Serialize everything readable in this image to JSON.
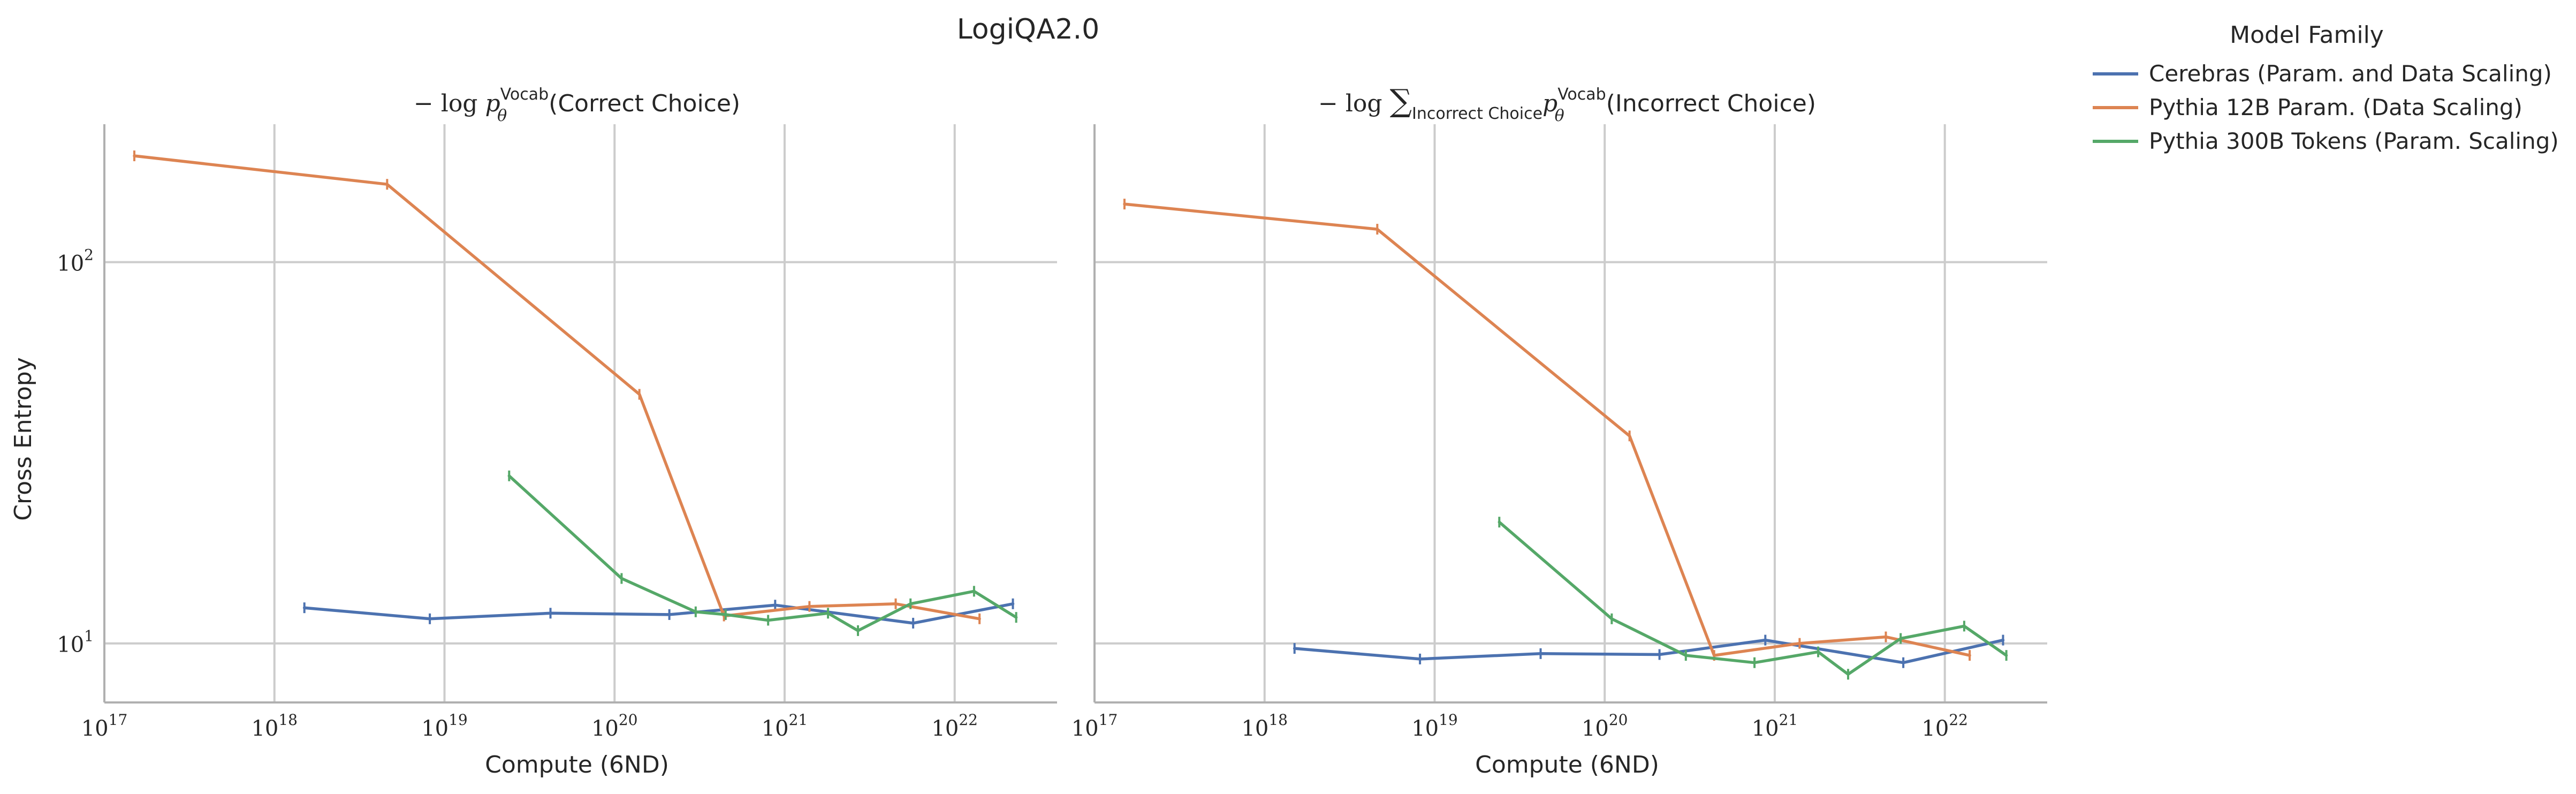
{
  "figure": {
    "suptitle": "LogiQA2.0",
    "ylabel": "Cross Entropy",
    "legend": {
      "title": "Model Family",
      "placement": "outside-right-top"
    }
  },
  "colors": {
    "Cerebras": "#4c72b0",
    "Pythia12B": "#dd8452",
    "Pythia300B": "#55a868",
    "grid": "#cccccc",
    "axes": "#b0b0b0"
  },
  "chart_data": [
    {
      "type": "line",
      "title_parts": {
        "neg_log": "− log ",
        "p": "p",
        "theta": "θ",
        "sup": "Vocab",
        "rest": "(Correct Choice)"
      },
      "xlabel": "Compute (6ND)",
      "ylabel": "Cross Entropy",
      "xscale": "log",
      "yscale": "log",
      "xlim": [
        1e+17,
        4e+22
      ],
      "ylim": [
        7.0,
        230
      ],
      "grid": true,
      "xticks": [
        {
          "value": 1e+17,
          "base": "10",
          "exp": "17"
        },
        {
          "value": 1e+18,
          "base": "10",
          "exp": "18"
        },
        {
          "value": 1e+19,
          "base": "10",
          "exp": "19"
        },
        {
          "value": 1e+20,
          "base": "10",
          "exp": "20"
        },
        {
          "value": 1e+21,
          "base": "10",
          "exp": "21"
        },
        {
          "value": 1e+22,
          "base": "10",
          "exp": "22"
        }
      ],
      "yticks": [
        {
          "value": 10,
          "base": "10",
          "exp": "1"
        },
        {
          "value": 100,
          "base": "10",
          "exp": "2"
        }
      ],
      "series": [
        {
          "name": "Cerebras (Param. and Data Scaling)",
          "color_key": "Cerebras",
          "x": [
            1.5e+18,
            8.2e+18,
            4.2e+19,
            2.1e+20,
            8.8e+20,
            5.7e+21,
            2.2e+22
          ],
          "y": [
            12.4,
            11.6,
            12.0,
            11.9,
            12.6,
            11.3,
            12.7
          ]
        },
        {
          "name": "Pythia 12B Param. (Data Scaling)",
          "color_key": "Pythia12B",
          "x": [
            1.5e+17,
            4.6e+18,
            1.4e+20,
            4.4e+20,
            1.4e+21,
            4.5e+21,
            1.4e+22
          ],
          "y": [
            190,
            160,
            45,
            11.8,
            12.5,
            12.7,
            11.6
          ]
        },
        {
          "name": "Pythia 300B Tokens (Param. Scaling)",
          "color_key": "Pythia300B",
          "x": [
            2.4e+19,
            1.1e+20,
            3e+20,
            4.5e+20,
            8e+20,
            1.8e+21,
            2.7e+21,
            5.5e+21,
            1.3e+22,
            2.3e+22
          ],
          "y": [
            27.5,
            14.8,
            12.1,
            11.9,
            11.5,
            12.0,
            10.8,
            12.7,
            13.7,
            11.7
          ]
        }
      ]
    },
    {
      "type": "line",
      "title_parts": {
        "neg_log": "− log ",
        "sum": "∑",
        "sub": "Incorrect Choice",
        "p": "p",
        "theta": "θ",
        "sup": "Vocab",
        "rest": "(Incorrect Choice)"
      },
      "xlabel": "Compute (6ND)",
      "xscale": "log",
      "yscale": "log",
      "xlim": [
        1e+17,
        4e+22
      ],
      "ylim": [
        7.0,
        230
      ],
      "grid": true,
      "xticks": [
        {
          "value": 1e+17,
          "base": "10",
          "exp": "17"
        },
        {
          "value": 1e+18,
          "base": "10",
          "exp": "18"
        },
        {
          "value": 1e+19,
          "base": "10",
          "exp": "19"
        },
        {
          "value": 1e+20,
          "base": "10",
          "exp": "20"
        },
        {
          "value": 1e+21,
          "base": "10",
          "exp": "21"
        },
        {
          "value": 1e+22,
          "base": "10",
          "exp": "22"
        }
      ],
      "yticks": [
        {
          "value": 10,
          "base": "10",
          "exp": "1"
        },
        {
          "value": 100,
          "base": "10",
          "exp": "2"
        }
      ],
      "series": [
        {
          "name": "Cerebras (Param. and Data Scaling)",
          "color_key": "Cerebras",
          "x": [
            1.5e+18,
            8.2e+18,
            4.2e+19,
            2.1e+20,
            8.8e+20,
            5.7e+21,
            2.2e+22
          ],
          "y": [
            9.7,
            9.1,
            9.4,
            9.35,
            10.2,
            8.9,
            10.2
          ]
        },
        {
          "name": "Pythia 12B Param. (Data Scaling)",
          "color_key": "Pythia12B",
          "x": [
            1.5e+17,
            4.6e+18,
            1.4e+20,
            4.4e+20,
            1.4e+21,
            4.5e+21,
            1.4e+22
          ],
          "y": [
            142,
            122,
            35,
            9.3,
            10.0,
            10.4,
            9.3
          ]
        },
        {
          "name": "Pythia 300B Tokens (Param. Scaling)",
          "color_key": "Pythia300B",
          "x": [
            2.4e+19,
            1.1e+20,
            3e+20,
            7.6e+20,
            1.8e+21,
            2.7e+21,
            5.5e+21,
            1.3e+22,
            2.3e+22
          ],
          "y": [
            20.8,
            11.6,
            9.3,
            8.9,
            9.5,
            8.3,
            10.3,
            11.1,
            9.3
          ]
        }
      ]
    }
  ]
}
